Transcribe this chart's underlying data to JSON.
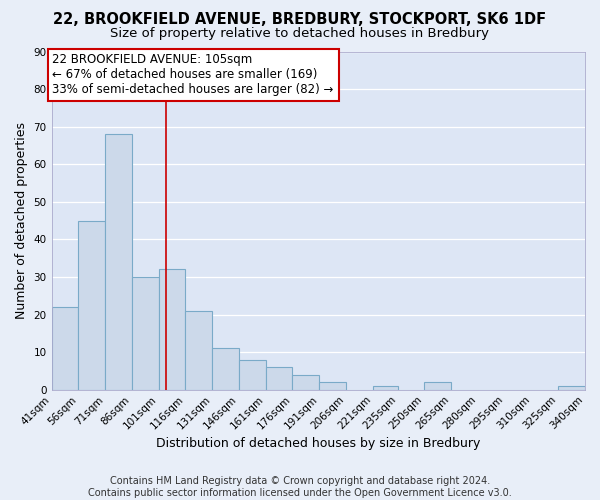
{
  "title1": "22, BROOKFIELD AVENUE, BREDBURY, STOCKPORT, SK6 1DF",
  "title2": "Size of property relative to detached houses in Bredbury",
  "xlabel": "Distribution of detached houses by size in Bredbury",
  "ylabel": "Number of detached properties",
  "bin_edges": [
    41,
    56,
    71,
    86,
    101,
    116,
    131,
    146,
    161,
    176,
    191,
    206,
    221,
    235,
    250,
    265,
    280,
    295,
    310,
    325,
    340
  ],
  "bar_heights": [
    22,
    45,
    68,
    30,
    32,
    21,
    11,
    8,
    6,
    4,
    2,
    0,
    1,
    0,
    2,
    0,
    0,
    0,
    0,
    1
  ],
  "tick_labels": [
    "41sqm",
    "56sqm",
    "71sqm",
    "86sqm",
    "101sqm",
    "116sqm",
    "131sqm",
    "146sqm",
    "161sqm",
    "176sqm",
    "191sqm",
    "206sqm",
    "221sqm",
    "235sqm",
    "250sqm",
    "265sqm",
    "280sqm",
    "295sqm",
    "310sqm",
    "325sqm",
    "340sqm"
  ],
  "ylim": [
    0,
    90
  ],
  "yticks": [
    0,
    10,
    20,
    30,
    40,
    50,
    60,
    70,
    80,
    90
  ],
  "bar_color": "#ccd9ea",
  "bar_edge_color": "#7aaac8",
  "vline_x": 105,
  "vline_color": "#cc0000",
  "annotation_line1": "22 BROOKFIELD AVENUE: 105sqm",
  "annotation_line2": "← 67% of detached houses are smaller (169)",
  "annotation_line3": "33% of semi-detached houses are larger (82) →",
  "footer_text": "Contains HM Land Registry data © Crown copyright and database right 2024.\nContains public sector information licensed under the Open Government Licence v3.0.",
  "bg_color": "#e8eef8",
  "plot_bg_color": "#dde6f5",
  "grid_color": "#ffffff",
  "title1_fontsize": 10.5,
  "title2_fontsize": 9.5,
  "axis_label_fontsize": 9,
  "tick_fontsize": 7.5,
  "annotation_fontsize": 8.5,
  "footer_fontsize": 7
}
